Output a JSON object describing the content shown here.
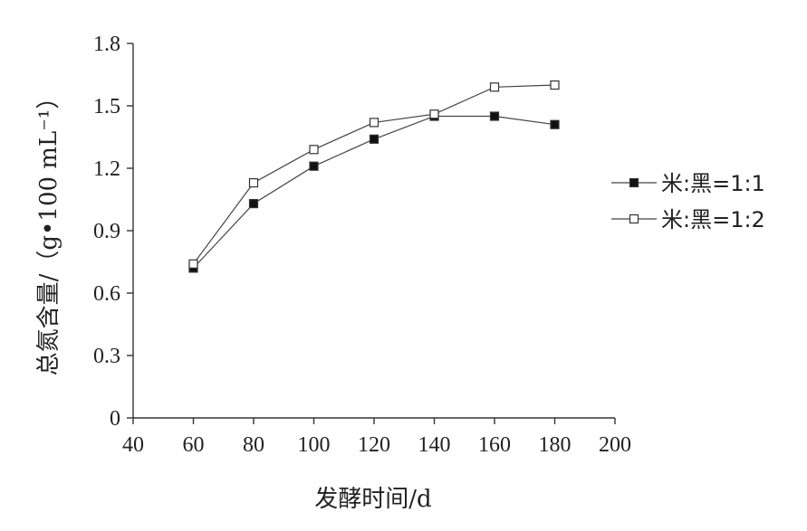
{
  "chart_data": {
    "type": "line",
    "xlabel": "发酵时间/d",
    "ylabel": "总氮含量/（g•100 mL⁻¹）",
    "xlim": [
      40,
      200
    ],
    "ylim": [
      0,
      1.8
    ],
    "xticks": [
      40,
      60,
      80,
      100,
      120,
      140,
      160,
      180,
      200
    ],
    "yticks": [
      0,
      0.3,
      0.6,
      0.9,
      1.2,
      1.5,
      1.8
    ],
    "ytick_labels": [
      "0",
      "0.3",
      "0.6",
      "0.9",
      "1.2",
      "1.5",
      "1.8"
    ],
    "grid": false,
    "legend_position": "right",
    "x": [
      60,
      80,
      100,
      120,
      140,
      160,
      180
    ],
    "series": [
      {
        "name": "米:黑=1:1",
        "marker": "filled-square",
        "values": [
          0.72,
          1.03,
          1.21,
          1.34,
          1.45,
          1.45,
          1.41
        ]
      },
      {
        "name": "米:黑=1:2",
        "marker": "open-square",
        "values": [
          0.74,
          1.13,
          1.29,
          1.42,
          1.46,
          1.59,
          1.6
        ]
      }
    ]
  }
}
